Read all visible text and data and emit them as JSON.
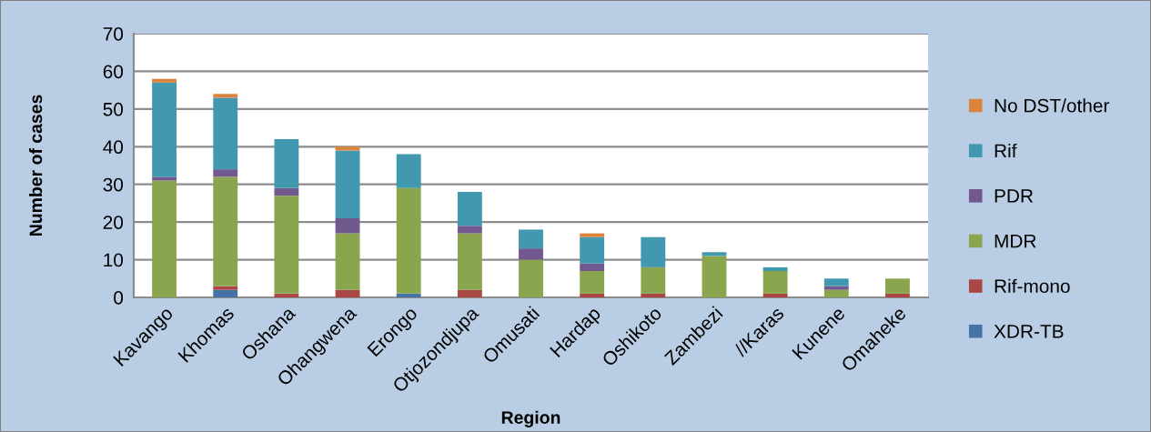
{
  "chart_data": {
    "type": "bar",
    "stacked": true,
    "xlabel": "Region",
    "ylabel": "Number of cases",
    "categories": [
      "Kavango",
      "Khomas",
      "Oshana",
      "Ohangwena",
      "Erongo",
      "Otjozondjupa",
      "Omusati",
      "Hardap",
      "Oshikoto",
      "Zambezi",
      "//Karas",
      "Kunene",
      "Omaheke"
    ],
    "series": [
      {
        "name": "XDR-TB",
        "color": "#4572a7",
        "values": [
          0,
          2,
          0,
          0,
          1,
          0,
          0,
          0,
          0,
          0,
          0,
          0,
          0
        ]
      },
      {
        "name": "Rif-mono",
        "color": "#aa4643",
        "values": [
          0,
          1,
          1,
          2,
          0,
          2,
          0,
          1,
          1,
          0,
          1,
          0,
          1
        ]
      },
      {
        "name": "MDR",
        "color": "#89a54e",
        "values": [
          31,
          29,
          26,
          15,
          28,
          15,
          10,
          6,
          7,
          11,
          6,
          2,
          4
        ]
      },
      {
        "name": "PDR",
        "color": "#71588f",
        "values": [
          1,
          2,
          2,
          4,
          0,
          2,
          3,
          2,
          0,
          0,
          0,
          1,
          0
        ]
      },
      {
        "name": "Rif",
        "color": "#4198af",
        "values": [
          25,
          19,
          13,
          18,
          9,
          9,
          5,
          7,
          8,
          1,
          1,
          2,
          0
        ]
      },
      {
        "name": "No DST/other",
        "color": "#db843d",
        "values": [
          1,
          1,
          0,
          1,
          0,
          0,
          0,
          1,
          0,
          0,
          0,
          0,
          0
        ]
      }
    ],
    "ylim": [
      0,
      70
    ],
    "yticks": [
      0,
      10,
      20,
      30,
      40,
      50,
      60,
      70
    ],
    "grid": "y",
    "legend": "right"
  }
}
